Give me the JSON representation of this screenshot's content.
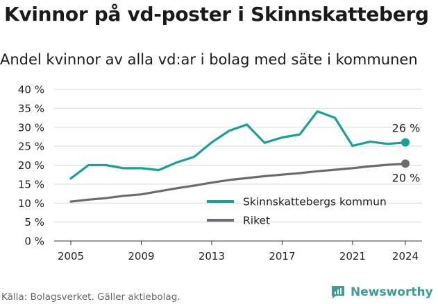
{
  "header": {
    "title": "Kvinnor på vd-poster i Skinnskatteberg",
    "subtitle": "Andel kvinnor av alla vd:ar i bolag med säte i kommunen"
  },
  "footer": {
    "source": "Källa: Bolagsverket. Gäller aktiebolag.",
    "brand": "Newsworthy",
    "logo_icon": "newsworthy-logo-icon"
  },
  "colors": {
    "kommun": "#16a096",
    "riket": "#6b6a6e",
    "grid": "#d9d9d9",
    "brand": "#3d9c94"
  },
  "chart_data": {
    "type": "line",
    "title": "Kvinnor på vd-poster i Skinnskatteberg",
    "subtitle": "Andel kvinnor av alla vd:ar i bolag med säte i kommunen",
    "x": [
      2005,
      2006,
      2007,
      2008,
      2009,
      2010,
      2011,
      2012,
      2013,
      2014,
      2015,
      2016,
      2017,
      2018,
      2019,
      2020,
      2021,
      2022,
      2023,
      2024
    ],
    "x_ticks": [
      "2005",
      "2009",
      "2013",
      "2017",
      "2021",
      "2024"
    ],
    "y_ticks": [
      "0 %",
      "5 %",
      "10 %",
      "15 %",
      "20 %",
      "25 %",
      "30 %",
      "35 %",
      "40 %"
    ],
    "ylim": [
      0,
      40
    ],
    "grid": true,
    "legend_position": "bottom-right",
    "series": [
      {
        "name": "Skinnskattebergs kommun",
        "color": "#16a096",
        "values": [
          16.5,
          20.0,
          20.0,
          19.2,
          19.2,
          18.7,
          20.7,
          22.2,
          26.0,
          29.1,
          30.7,
          25.9,
          27.3,
          28.1,
          34.2,
          32.5,
          25.1,
          26.2,
          25.6,
          26.0
        ],
        "end_label": "26 %"
      },
      {
        "name": "Riket",
        "color": "#6b6a6e",
        "values": [
          10.4,
          10.9,
          11.3,
          11.9,
          12.3,
          13.1,
          13.9,
          14.6,
          15.4,
          16.1,
          16.6,
          17.1,
          17.5,
          17.9,
          18.4,
          18.8,
          19.2,
          19.7,
          20.1,
          20.4
        ],
        "end_label": "20 %"
      }
    ]
  }
}
